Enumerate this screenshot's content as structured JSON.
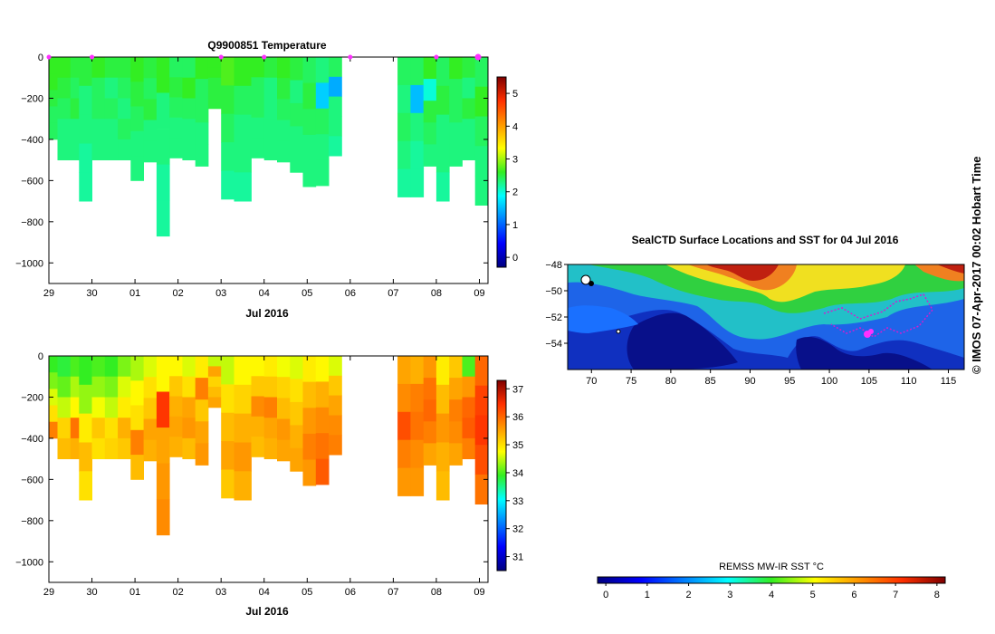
{
  "chart_data": [
    {
      "id": "temperature",
      "type": "heatmap",
      "title": "Q9900851  Temperature",
      "xlabel": "Jul 2016",
      "x_tick_labels": [
        "29",
        "30",
        "01",
        "02",
        "03",
        "04",
        "05",
        "06",
        "07",
        "08",
        "09"
      ],
      "x_range": [
        0,
        10.2
      ],
      "y_ticks": [
        0,
        -200,
        -400,
        -600,
        -800,
        -1000
      ],
      "y_range": [
        -1100,
        0
      ],
      "colorbar": {
        "ticks": [
          0,
          1,
          2,
          3,
          4,
          5
        ],
        "range": [
          -0.3,
          5.5
        ]
      },
      "profiles": [
        {
          "t": 0.0,
          "d": 400,
          "v": [
            2.6,
            2.6,
            2.5,
            2.4,
            2.4
          ]
        },
        {
          "t": 0.2,
          "d": 500,
          "v": [
            2.6,
            2.5,
            2.4,
            2.3,
            2.3
          ]
        },
        {
          "t": 0.5,
          "d": 500,
          "v": [
            2.5,
            2.4,
            2.5,
            2.3,
            2.3
          ]
        },
        {
          "t": 0.7,
          "d": 700,
          "v": [
            2.5,
            2.3,
            2.3,
            2.2,
            2.2
          ]
        },
        {
          "t": 1.0,
          "d": 500,
          "v": [
            2.6,
            2.4,
            2.4,
            2.3,
            2.3
          ]
        },
        {
          "t": 1.3,
          "d": 500,
          "v": [
            2.5,
            2.3,
            2.4,
            2.3,
            2.3
          ]
        },
        {
          "t": 1.6,
          "d": 500,
          "v": [
            2.5,
            2.4,
            2.3,
            2.4,
            2.3
          ]
        },
        {
          "t": 1.9,
          "d": 600,
          "v": [
            2.6,
            2.5,
            2.4,
            2.3,
            2.3
          ]
        },
        {
          "t": 2.2,
          "d": 510,
          "v": [
            2.5,
            2.4,
            2.5,
            2.3,
            2.3
          ]
        },
        {
          "t": 2.5,
          "d": 870,
          "v": [
            2.6,
            2.3,
            2.3,
            2.2,
            2.2
          ]
        },
        {
          "t": 2.8,
          "d": 490,
          "v": [
            2.4,
            2.5,
            2.4,
            2.3,
            2.3
          ]
        },
        {
          "t": 3.1,
          "d": 500,
          "v": [
            2.4,
            2.6,
            2.4,
            2.3,
            2.3
          ]
        },
        {
          "t": 3.4,
          "d": 530,
          "v": [
            2.6,
            2.4,
            2.4,
            2.3,
            2.3
          ]
        },
        {
          "t": 3.7,
          "d": 250,
          "v": [
            2.6,
            2.6,
            2.5,
            2.5,
            2.5
          ]
        },
        {
          "t": 4.0,
          "d": 690,
          "v": [
            2.7,
            2.5,
            2.4,
            2.3,
            2.2
          ]
        },
        {
          "t": 4.3,
          "d": 700,
          "v": [
            2.6,
            2.4,
            2.3,
            2.3,
            2.2
          ]
        },
        {
          "t": 4.7,
          "d": 490,
          "v": [
            2.6,
            2.4,
            2.4,
            2.3,
            2.3
          ]
        },
        {
          "t": 5.0,
          "d": 500,
          "v": [
            2.5,
            2.3,
            2.3,
            2.3,
            2.3
          ]
        },
        {
          "t": 5.3,
          "d": 510,
          "v": [
            2.6,
            2.5,
            2.4,
            2.3,
            2.3
          ]
        },
        {
          "t": 5.6,
          "d": 560,
          "v": [
            2.5,
            2.3,
            2.4,
            2.3,
            2.3
          ]
        },
        {
          "t": 5.9,
          "d": 630,
          "v": [
            2.4,
            2.5,
            2.4,
            2.3,
            2.3
          ]
        },
        {
          "t": 6.2,
          "d": 625,
          "v": [
            2.3,
            1.6,
            2.4,
            2.3,
            2.3
          ]
        },
        {
          "t": 6.5,
          "d": 480,
          "v": [
            2.4,
            1.4,
            2.3,
            2.3,
            2.2
          ]
        },
        {
          "t": 8.1,
          "d": 680,
          "v": [
            2.4,
            2.3,
            2.4,
            2.3,
            2.2
          ]
        },
        {
          "t": 8.4,
          "d": 680,
          "v": [
            2.4,
            1.5,
            2.3,
            2.2,
            2.2
          ]
        },
        {
          "t": 8.7,
          "d": 530,
          "v": [
            2.6,
            2.0,
            2.5,
            2.4,
            2.3
          ]
        },
        {
          "t": 9.0,
          "d": 700,
          "v": [
            2.4,
            2.5,
            2.3,
            2.3,
            2.2
          ]
        },
        {
          "t": 9.3,
          "d": 530,
          "v": [
            2.6,
            2.4,
            2.4,
            2.3,
            2.3
          ]
        },
        {
          "t": 9.6,
          "d": 500,
          "v": [
            2.5,
            2.3,
            2.5,
            2.3,
            2.3
          ]
        },
        {
          "t": 9.9,
          "d": 720,
          "v": [
            2.4,
            2.6,
            2.4,
            2.3,
            2.3
          ]
        }
      ]
    },
    {
      "id": "salinity",
      "type": "heatmap",
      "title": "",
      "xlabel": "Jul 2016",
      "x_tick_labels": [
        "29",
        "30",
        "01",
        "02",
        "03",
        "04",
        "05",
        "06",
        "07",
        "08",
        "09"
      ],
      "x_range": [
        0,
        10.2
      ],
      "y_ticks": [
        0,
        -200,
        -400,
        -600,
        -800,
        -1000
      ],
      "y_range": [
        -1100,
        0
      ],
      "colorbar": {
        "ticks": [
          31,
          32,
          33,
          34,
          35,
          36,
          37
        ],
        "range": [
          30.5,
          37.3
        ]
      },
      "profiles": [
        {
          "t": 0.0,
          "d": 400,
          "v": [
            33.9,
            34.2,
            34.6,
            35.0,
            35.8
          ]
        },
        {
          "t": 0.2,
          "d": 500,
          "v": [
            33.8,
            34.1,
            34.5,
            35.1,
            35.3
          ]
        },
        {
          "t": 0.5,
          "d": 500,
          "v": [
            34.0,
            34.4,
            34.8,
            35.9,
            35.4
          ]
        },
        {
          "t": 0.7,
          "d": 700,
          "v": [
            33.9,
            34.3,
            34.9,
            35.3,
            35.0
          ]
        },
        {
          "t": 1.0,
          "d": 500,
          "v": [
            34.0,
            34.3,
            34.7,
            35.2,
            35.0
          ]
        },
        {
          "t": 1.3,
          "d": 500,
          "v": [
            33.9,
            34.2,
            34.5,
            35.0,
            35.1
          ]
        },
        {
          "t": 1.6,
          "d": 500,
          "v": [
            34.2,
            34.6,
            34.9,
            35.4,
            35.2
          ]
        },
        {
          "t": 1.9,
          "d": 600,
          "v": [
            34.4,
            34.8,
            35.0,
            35.8,
            35.3
          ]
        },
        {
          "t": 2.2,
          "d": 510,
          "v": [
            34.6,
            35.0,
            35.2,
            35.5,
            35.4
          ]
        },
        {
          "t": 2.5,
          "d": 870,
          "v": [
            34.8,
            36.4,
            35.5,
            35.6,
            35.7
          ]
        },
        {
          "t": 2.8,
          "d": 490,
          "v": [
            34.8,
            35.2,
            35.4,
            35.5,
            35.4
          ]
        },
        {
          "t": 3.1,
          "d": 500,
          "v": [
            34.6,
            35.0,
            35.5,
            35.6,
            35.3
          ]
        },
        {
          "t": 3.4,
          "d": 530,
          "v": [
            34.9,
            35.8,
            35.2,
            35.5,
            35.6
          ]
        },
        {
          "t": 3.7,
          "d": 250,
          "v": [
            34.5,
            35.5,
            35.1,
            35.3,
            35.5
          ]
        },
        {
          "t": 4.0,
          "d": 690,
          "v": [
            34.5,
            35.0,
            35.3,
            35.5,
            35.2
          ]
        },
        {
          "t": 4.3,
          "d": 700,
          "v": [
            34.8,
            35.1,
            35.4,
            35.6,
            35.4
          ]
        },
        {
          "t": 4.7,
          "d": 490,
          "v": [
            34.8,
            35.2,
            35.7,
            35.4,
            35.3
          ]
        },
        {
          "t": 5.0,
          "d": 500,
          "v": [
            34.9,
            35.2,
            35.8,
            35.5,
            35.4
          ]
        },
        {
          "t": 5.3,
          "d": 510,
          "v": [
            34.7,
            35.1,
            35.3,
            35.6,
            35.5
          ]
        },
        {
          "t": 5.6,
          "d": 560,
          "v": [
            34.6,
            35.0,
            35.2,
            35.4,
            35.5
          ]
        },
        {
          "t": 5.9,
          "d": 630,
          "v": [
            34.9,
            35.3,
            35.6,
            35.8,
            35.6
          ]
        },
        {
          "t": 6.2,
          "d": 625,
          "v": [
            34.8,
            35.4,
            35.7,
            35.9,
            36.1
          ]
        },
        {
          "t": 6.5,
          "d": 480,
          "v": [
            34.6,
            35.2,
            35.5,
            35.7,
            35.8
          ]
        },
        {
          "t": 8.1,
          "d": 680,
          "v": [
            35.5,
            35.7,
            36.2,
            35.8,
            35.6
          ]
        },
        {
          "t": 8.4,
          "d": 680,
          "v": [
            35.4,
            35.8,
            35.9,
            35.7,
            35.6
          ]
        },
        {
          "t": 8.7,
          "d": 530,
          "v": [
            35.6,
            35.9,
            36.0,
            35.8,
            35.5
          ]
        },
        {
          "t": 9.0,
          "d": 700,
          "v": [
            34.9,
            35.3,
            35.6,
            35.4,
            35.3
          ]
        },
        {
          "t": 9.3,
          "d": 530,
          "v": [
            35.2,
            35.5,
            35.8,
            35.7,
            35.5
          ]
        },
        {
          "t": 9.6,
          "d": 500,
          "v": [
            34.0,
            35.6,
            36.0,
            36.1,
            35.8
          ]
        },
        {
          "t": 9.9,
          "d": 720,
          "v": [
            36.0,
            36.3,
            36.4,
            36.2,
            35.9
          ]
        }
      ]
    },
    {
      "id": "sst-map",
      "type": "heatmap",
      "title": "SealCTD Surface Locations and SST for 04 Jul 2016",
      "x_ticks": [
        70,
        75,
        80,
        85,
        90,
        95,
        100,
        105,
        110,
        115
      ],
      "y_ticks": [
        -48,
        -50,
        -52,
        -54
      ],
      "x_range": [
        67,
        117
      ],
      "y_range": [
        -56,
        -48
      ],
      "colorbar_label": "REMSS MW-IR SST °C",
      "colorbar_ticks": [
        0,
        1,
        2,
        3,
        4,
        5,
        6,
        7,
        8
      ],
      "colorbar_range": [
        -0.2,
        8.2
      ]
    }
  ],
  "credit": "© IMOS 07-Apr-2017 00:02 Hobart Time"
}
